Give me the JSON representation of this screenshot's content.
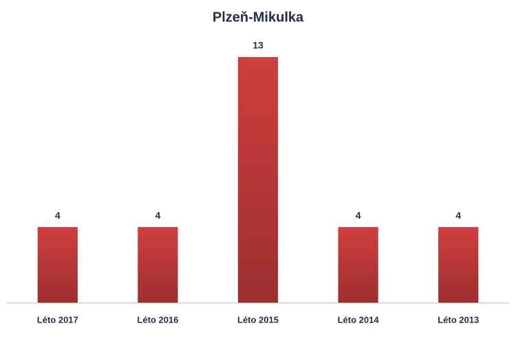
{
  "chart_data": {
    "type": "bar",
    "title": "Plzeň-Mikulka",
    "categories": [
      "Léto 2017",
      "Léto 2016",
      "Léto 2015",
      "Léto 2014",
      "Léto 2013"
    ],
    "values": [
      4,
      4,
      13,
      4,
      4
    ],
    "color": "#d03e3e"
  }
}
